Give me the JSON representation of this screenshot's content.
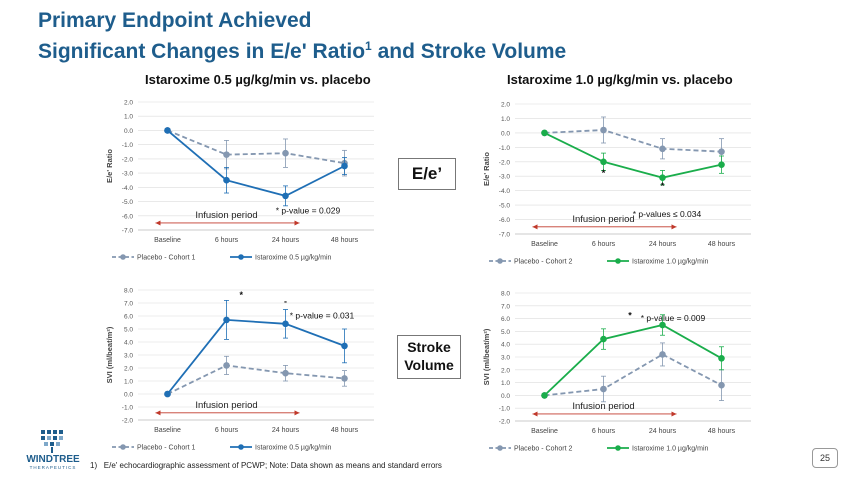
{
  "slide": {
    "title_line1": "Primary Endpoint Achieved",
    "title_line2": "Significant Changes in E/e' Ratio",
    "title_sup": "1",
    "title_line2_tail": " and Stroke Volume",
    "col_left": "Istaroxime 0.5 µg/kg/min vs. placebo",
    "col_right": "Istaroxime 1.0 µg/kg/min vs. placebo",
    "badge_ee": "E/e’",
    "badge_sv_line1": "Stroke",
    "badge_sv_line2": "Volume",
    "footnote_num": "1)",
    "footnote_text": "E/e' echocardiographic assessment of PCWP; Note: Data shown as means and standard errors",
    "page_number": "25",
    "logo_text": "WINDTREE",
    "logo_sub": "THERAPEUTICS"
  },
  "colors": {
    "title": "#1e5d8c",
    "placebo": "#8497b0",
    "low_dose": "#1f6fb5",
    "high_dose": "#1aad4b",
    "arrow": "#c0392b"
  },
  "chart_data": [
    {
      "type": "line",
      "ylabel": "E/e' Ratio",
      "categories": [
        "Baseline",
        "6 hours",
        "24 hours",
        "48 hours"
      ],
      "ylim": [
        -7.0,
        2.0
      ],
      "yticks": [
        "2.0",
        "1.0",
        "0.0",
        "-1.0",
        "-2.0",
        "-3.0",
        "-4.0",
        "-5.0",
        "-6.0",
        "-7.0"
      ],
      "series": [
        {
          "name": "Placebo - Cohort 1",
          "style": "dashed",
          "color": "#8497b0",
          "values": [
            0.0,
            -1.7,
            -1.6,
            -2.3
          ],
          "errors": [
            0,
            1.0,
            1.0,
            0.9
          ]
        },
        {
          "name": "Istaroxime 0.5 µg/kg/min",
          "style": "solid",
          "color": "#1f6fb5",
          "values": [
            0.0,
            -3.5,
            -4.6,
            -2.5
          ],
          "errors": [
            0,
            0.9,
            0.7,
            0.6
          ]
        }
      ],
      "infusion_label": "Infusion period",
      "pvalue_label": "* p-value = 0.029",
      "stars": []
    },
    {
      "type": "line",
      "ylabel": "E/e' Ratio",
      "categories": [
        "Baseline",
        "6 hours",
        "24 hours",
        "48 hours"
      ],
      "ylim": [
        -7.0,
        2.0
      ],
      "yticks": [
        "2.0",
        "1.0",
        "0.0",
        "-1.0",
        "-2.0",
        "-3.0",
        "-4.0",
        "-5.0",
        "-6.0",
        "-7.0"
      ],
      "series": [
        {
          "name": "Placebo - Cohort 2",
          "style": "dashed",
          "color": "#8497b0",
          "values": [
            0.0,
            0.2,
            -1.1,
            -1.3
          ],
          "errors": [
            0,
            0.9,
            0.7,
            0.9
          ]
        },
        {
          "name": "Istaroxime 1.0 µg/kg/min",
          "style": "solid",
          "color": "#1aad4b",
          "values": [
            0.0,
            -2.0,
            -3.1,
            -2.2
          ],
          "errors": [
            0,
            0.6,
            0.5,
            0.6
          ]
        }
      ],
      "infusion_label": "Infusion period",
      "pvalue_label": "* p-values ≤ 0.034",
      "stars": [
        {
          "x": 1,
          "y": -3.0,
          "label": "*"
        },
        {
          "x": 2,
          "y": -3.9,
          "label": "*"
        }
      ]
    },
    {
      "type": "line",
      "ylabel": "SVI (ml/beat/m²)",
      "categories": [
        "Baseline",
        "6 hours",
        "24 hours",
        "48 hours"
      ],
      "ylim": [
        -2.0,
        8.0
      ],
      "yticks": [
        "8.0",
        "7.0",
        "6.0",
        "5.0",
        "4.0",
        "3.0",
        "2.0",
        "1.0",
        "0.0",
        "-1.0",
        "-2.0"
      ],
      "series": [
        {
          "name": "Placebo - Cohort 1",
          "style": "dashed",
          "color": "#8497b0",
          "values": [
            0.0,
            2.2,
            1.6,
            1.2
          ],
          "errors": [
            0,
            0.7,
            0.6,
            0.6
          ]
        },
        {
          "name": "Istaroxime 0.5 µg/kg/min",
          "style": "solid",
          "color": "#1f6fb5",
          "values": [
            0.0,
            5.7,
            5.4,
            3.7
          ],
          "errors": [
            0,
            1.5,
            1.1,
            1.3
          ]
        }
      ],
      "infusion_label": "Infusion period",
      "pvalue_label": "* p-value = 0.031",
      "stars": [
        {
          "x": 1.25,
          "y": 7.4,
          "label": "*"
        },
        {
          "x": 2.0,
          "y": 6.9,
          "label": "-"
        }
      ]
    },
    {
      "type": "line",
      "ylabel": "SVI (ml/beat/m²)",
      "categories": [
        "Baseline",
        "6 hours",
        "24 hours",
        "48 hours"
      ],
      "ylim": [
        -2.0,
        8.0
      ],
      "yticks": [
        "8.0",
        "7.0",
        "6.0",
        "5.0",
        "4.0",
        "3.0",
        "2.0",
        "1.0",
        "0.0",
        "-1.0",
        "-2.0"
      ],
      "series": [
        {
          "name": "Placebo - Cohort 2",
          "style": "dashed",
          "color": "#8497b0",
          "values": [
            0.0,
            0.5,
            3.2,
            0.8
          ],
          "errors": [
            0,
            1.0,
            0.9,
            1.2
          ]
        },
        {
          "name": "Istaroxime 1.0 µg/kg/min",
          "style": "solid",
          "color": "#1aad4b",
          "values": [
            0.0,
            4.4,
            5.5,
            2.9
          ],
          "errors": [
            0,
            0.8,
            0.8,
            0.9
          ]
        }
      ],
      "infusion_label": "Infusion period",
      "pvalue_label": "* p-value = 0.009",
      "stars": [
        {
          "x": 1.45,
          "y": 6.0,
          "label": "*"
        }
      ]
    }
  ]
}
